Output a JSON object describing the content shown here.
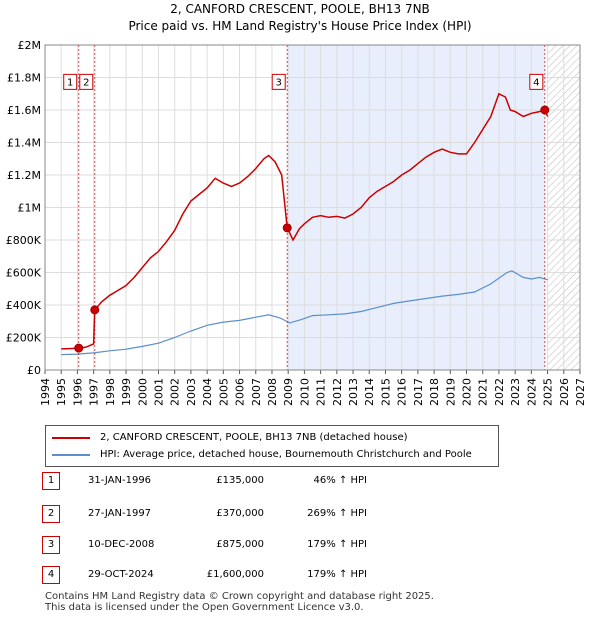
{
  "chart_data": {
    "type": "line",
    "title": "2, CANFORD CRESCENT, POOLE, BH13 7NB",
    "subtitle": "Price paid vs. HM Land Registry's House Price Index (HPI)",
    "xlim": [
      1994,
      2027
    ],
    "ylim": [
      0,
      2000000
    ],
    "x_ticks": [
      "1994",
      "1995",
      "1996",
      "1997",
      "1998",
      "1999",
      "2000",
      "2001",
      "2002",
      "2003",
      "2004",
      "2005",
      "2006",
      "2007",
      "2008",
      "2009",
      "2010",
      "2011",
      "2012",
      "2013",
      "2014",
      "2015",
      "2016",
      "2017",
      "2018",
      "2019",
      "2020",
      "2021",
      "2022",
      "2023",
      "2024",
      "2025",
      "2026",
      "2027"
    ],
    "y_ticks": [
      {
        "value": 0,
        "label": "£0"
      },
      {
        "value": 200000,
        "label": "£200K"
      },
      {
        "value": 400000,
        "label": "£400K"
      },
      {
        "value": 600000,
        "label": "£600K"
      },
      {
        "value": 800000,
        "label": "£800K"
      },
      {
        "value": 1000000,
        "label": "£1M"
      },
      {
        "value": 1200000,
        "label": "£1.2M"
      },
      {
        "value": 1400000,
        "label": "£1.4M"
      },
      {
        "value": 1600000,
        "label": "£1.6M"
      },
      {
        "value": 1800000,
        "label": "£1.8M"
      },
      {
        "value": 2000000,
        "label": "£2M"
      }
    ],
    "shaded_range": [
      2008.94,
      2024.83
    ],
    "hatched_from": 2025.0,
    "series": [
      {
        "name": "2, CANFORD CRESCENT, POOLE, BH13 7NB (detached house)",
        "color": "#cc0000",
        "x": [
          1995.0,
          1995.5,
          1996.08,
          1996.5,
          1997.0,
          1997.07,
          1997.5,
          1998.0,
          1998.5,
          1999.0,
          1999.5,
          2000.0,
          2000.5,
          2001.0,
          2001.5,
          2002.0,
          2002.5,
          2003.0,
          2003.5,
          2004.0,
          2004.5,
          2005.0,
          2005.5,
          2006.0,
          2006.5,
          2007.0,
          2007.5,
          2007.8,
          2008.2,
          2008.6,
          2008.94,
          2009.3,
          2009.7,
          2010.0,
          2010.5,
          2011.0,
          2011.5,
          2012.0,
          2012.5,
          2013.0,
          2013.5,
          2014.0,
          2014.5,
          2015.0,
          2015.5,
          2016.0,
          2016.5,
          2017.0,
          2017.5,
          2018.0,
          2018.5,
          2019.0,
          2019.5,
          2020.0,
          2020.5,
          2021.0,
          2021.5,
          2022.0,
          2022.4,
          2022.7,
          2023.0,
          2023.5,
          2024.0,
          2024.5,
          2024.83,
          2025.0
        ],
        "values": [
          130000,
          132000,
          135000,
          140000,
          160000,
          370000,
          420000,
          460000,
          490000,
          520000,
          570000,
          630000,
          690000,
          730000,
          790000,
          860000,
          960000,
          1040000,
          1080000,
          1120000,
          1180000,
          1150000,
          1130000,
          1150000,
          1190000,
          1240000,
          1300000,
          1320000,
          1280000,
          1200000,
          875000,
          800000,
          870000,
          900000,
          940000,
          950000,
          940000,
          945000,
          935000,
          960000,
          1000000,
          1060000,
          1100000,
          1130000,
          1160000,
          1200000,
          1230000,
          1270000,
          1310000,
          1340000,
          1360000,
          1340000,
          1330000,
          1330000,
          1400000,
          1480000,
          1560000,
          1700000,
          1680000,
          1600000,
          1590000,
          1560000,
          1580000,
          1590000,
          1600000,
          1560000
        ]
      },
      {
        "name": "HPI: Average price, detached house, Bournemouth Christchurch and Poole",
        "color": "#5b8fcc",
        "x": [
          1995.0,
          1996.0,
          1997.0,
          1998.0,
          1999.0,
          2000.0,
          2001.0,
          2002.0,
          2003.0,
          2004.0,
          2005.0,
          2006.0,
          2007.0,
          2007.8,
          2008.5,
          2009.1,
          2009.8,
          2010.5,
          2011.5,
          2012.5,
          2013.5,
          2014.5,
          2015.5,
          2016.5,
          2017.5,
          2018.5,
          2019.5,
          2020.5,
          2021.5,
          2022.5,
          2022.8,
          2023.5,
          2024.0,
          2024.5,
          2025.0
        ],
        "values": [
          95000,
          98000,
          105000,
          118000,
          128000,
          145000,
          165000,
          200000,
          240000,
          275000,
          295000,
          305000,
          325000,
          340000,
          320000,
          290000,
          310000,
          335000,
          340000,
          345000,
          360000,
          385000,
          410000,
          425000,
          440000,
          455000,
          465000,
          480000,
          530000,
          600000,
          610000,
          570000,
          560000,
          570000,
          555000
        ]
      }
    ],
    "sales": [
      {
        "id": "1",
        "x": 1996.08,
        "value": 135000,
        "label_y": 1770000
      },
      {
        "id": "2",
        "x": 1997.07,
        "value": 370000,
        "label_y": 1770000
      },
      {
        "id": "3",
        "x": 2008.94,
        "value": 875000,
        "label_y": 1770000
      },
      {
        "id": "4",
        "x": 2024.83,
        "value": 1600000,
        "label_y": 1770000
      }
    ]
  },
  "legend": {
    "property_label": "2, CANFORD CRESCENT, POOLE, BH13 7NB (detached house)",
    "hpi_label": "HPI: Average price, detached house, Bournemouth Christchurch and Poole"
  },
  "table": [
    {
      "id": "1",
      "date": "31-JAN-1996",
      "price": "£135,000",
      "hpi": "46% ↑ HPI"
    },
    {
      "id": "2",
      "date": "27-JAN-1997",
      "price": "£370,000",
      "hpi": "269% ↑ HPI"
    },
    {
      "id": "3",
      "date": "10-DEC-2008",
      "price": "£875,000",
      "hpi": "179% ↑ HPI"
    },
    {
      "id": "4",
      "date": "29-OCT-2024",
      "price": "£1,600,000",
      "hpi": "179% ↑ HPI"
    }
  ],
  "footer": {
    "line1": "Contains HM Land Registry data © Crown copyright and database right 2025.",
    "line2": "This data is licensed under the Open Government Licence v3.0."
  },
  "colors": {
    "property": "#cc0000",
    "hpi": "#5b8fcc",
    "shade": "#e8eefb",
    "grid": "#dddddd"
  }
}
